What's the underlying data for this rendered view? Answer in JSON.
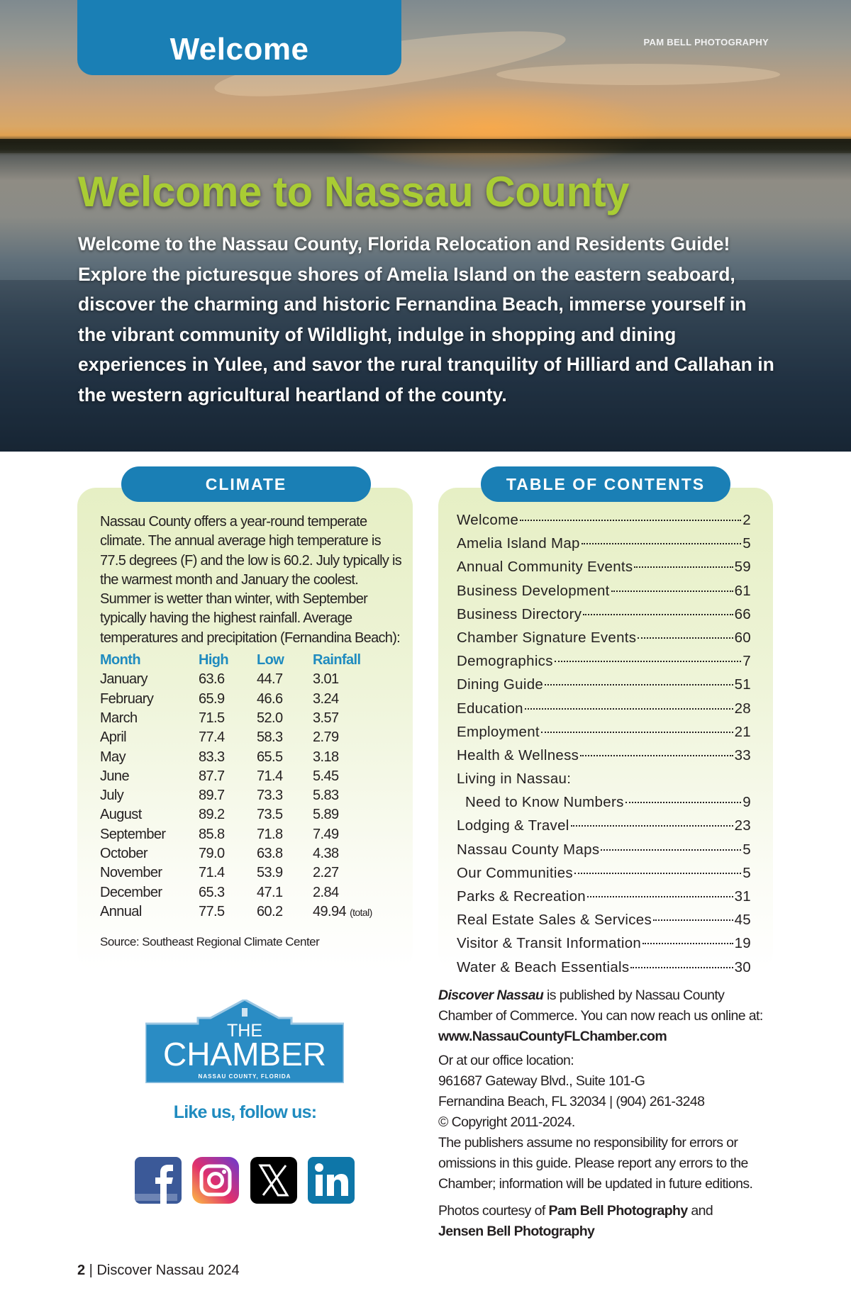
{
  "header": {
    "tab_label": "Welcome",
    "photo_credit": "PAM BELL PHOTOGRAPHY",
    "title": "Welcome to Nassau County",
    "intro": "Welcome to the Nassau County, Florida Relocation and Residents Guide! Explore the picturesque shores of Amelia Island on the eastern seaboard, discover the charming and historic Fernandina Beach, immerse yourself in the vibrant community of Wildlight, indulge in shopping and dining experiences in Yulee, and savor the rural tranquility of Hilliard and Callahan in the western agricultural heartland of the county."
  },
  "climate": {
    "heading": "CLIMATE",
    "text": "Nassau County offers a year-round temperate climate. The annual average high temperature is 77.5 degrees (F) and the low is 60.2. July  typically is the warmest month and January the coolest. Summer is wetter than winter, with September typically having the highest rainfall. Average temperatures and precipitation (Fernandina Beach):",
    "columns": [
      "Month",
      "High",
      "Low",
      "Rainfall"
    ],
    "rows": [
      [
        "January",
        "63.6",
        "44.7",
        "3.01"
      ],
      [
        "February",
        "65.9",
        "46.6",
        "3.24"
      ],
      [
        "March",
        "71.5",
        "52.0",
        "3.57"
      ],
      [
        "April",
        "77.4",
        "58.3",
        "2.79"
      ],
      [
        "May",
        "83.3",
        "65.5",
        "3.18"
      ],
      [
        "June",
        "87.7",
        "71.4",
        "5.45"
      ],
      [
        "July",
        "89.7",
        "73.3",
        "5.83"
      ],
      [
        "August",
        "89.2",
        "73.5",
        "5.89"
      ],
      [
        "September",
        "85.8",
        "71.8",
        "7.49"
      ],
      [
        "October",
        "79.0",
        "63.8",
        "4.38"
      ],
      [
        "November",
        "71.4",
        "53.9",
        "2.27"
      ],
      [
        "December",
        "65.3",
        "47.1",
        "2.84"
      ],
      [
        "Annual",
        "77.5",
        "60.2",
        "49.94"
      ]
    ],
    "total_note": "(total)",
    "source": "Source: Southeast Regional Climate Center"
  },
  "toc": {
    "heading": "TABLE OF CONTENTS",
    "items": [
      {
        "label": "Welcome",
        "page": "2"
      },
      {
        "label": "Amelia Island Map",
        "page": "5"
      },
      {
        "label": "Annual Community Events",
        "page": "59"
      },
      {
        "label": "Business Development",
        "page": "61"
      },
      {
        "label": "Business Directory",
        "page": "66"
      },
      {
        "label": "Chamber Signature Events",
        "page": "60"
      },
      {
        "label": "Demographics",
        "page": "7"
      },
      {
        "label": "Dining Guide",
        "page": "51"
      },
      {
        "label": "Education",
        "page": "28"
      },
      {
        "label": "Employment",
        "page": "21"
      },
      {
        "label": "Health & Wellness",
        "page": "33"
      },
      {
        "label": "Living in Nassau:",
        "page": ""
      },
      {
        "label": "Need to Know Numbers",
        "page": "9",
        "sub": true
      },
      {
        "label": "Lodging & Travel",
        "page": "23"
      },
      {
        "label": "Nassau County Maps",
        "page": "5"
      },
      {
        "label": "Our Communities",
        "page": "5"
      },
      {
        "label": "Parks & Recreation",
        "page": "31"
      },
      {
        "label": "Real Estate Sales & Services",
        "page": "45"
      },
      {
        "label": "Visitor & Transit Information",
        "page": "19"
      },
      {
        "label": "Water & Beach Essentials",
        "page": "30"
      }
    ]
  },
  "info": {
    "pub_name": "Discover Nassau",
    "pub_text": " is published by Nassau County Chamber of Commerce. You can now reach us online at:",
    "website": "www.NassauCountyFLChamber.com",
    "office_label": "Or at our office location:",
    "address1": "961687 Gateway Blvd., Suite 101-G",
    "address2": "Fernandina Beach, FL 32034 | (904) 261-3248",
    "copyright": "© Copyright 2011-2024.",
    "disclaimer": "The publishers assume no responsibility for errors or omissions in this guide. Please report any errors to the Chamber; information will be updated in future editions.",
    "photos_prefix": "Photos courtesy of ",
    "photographer1": "Pam Bell Photography",
    "photos_and": " and",
    "photographer2": "Jensen Bell Photography"
  },
  "logo": {
    "line1": "THE",
    "line2": "CHAMBER",
    "line3": "NASSAU COUNTY, FLORIDA",
    "color": "#2a8cc4"
  },
  "social": {
    "label": "Like us, follow us:",
    "icons": [
      "facebook-icon",
      "instagram-icon",
      "x-icon",
      "linkedin-icon"
    ]
  },
  "footer": {
    "page": "2",
    "sep": " | ",
    "publication": "Discover Nassau 2024"
  },
  "colors": {
    "accent_blue": "#1a7fb5",
    "title_green": "#a9cc34"
  }
}
